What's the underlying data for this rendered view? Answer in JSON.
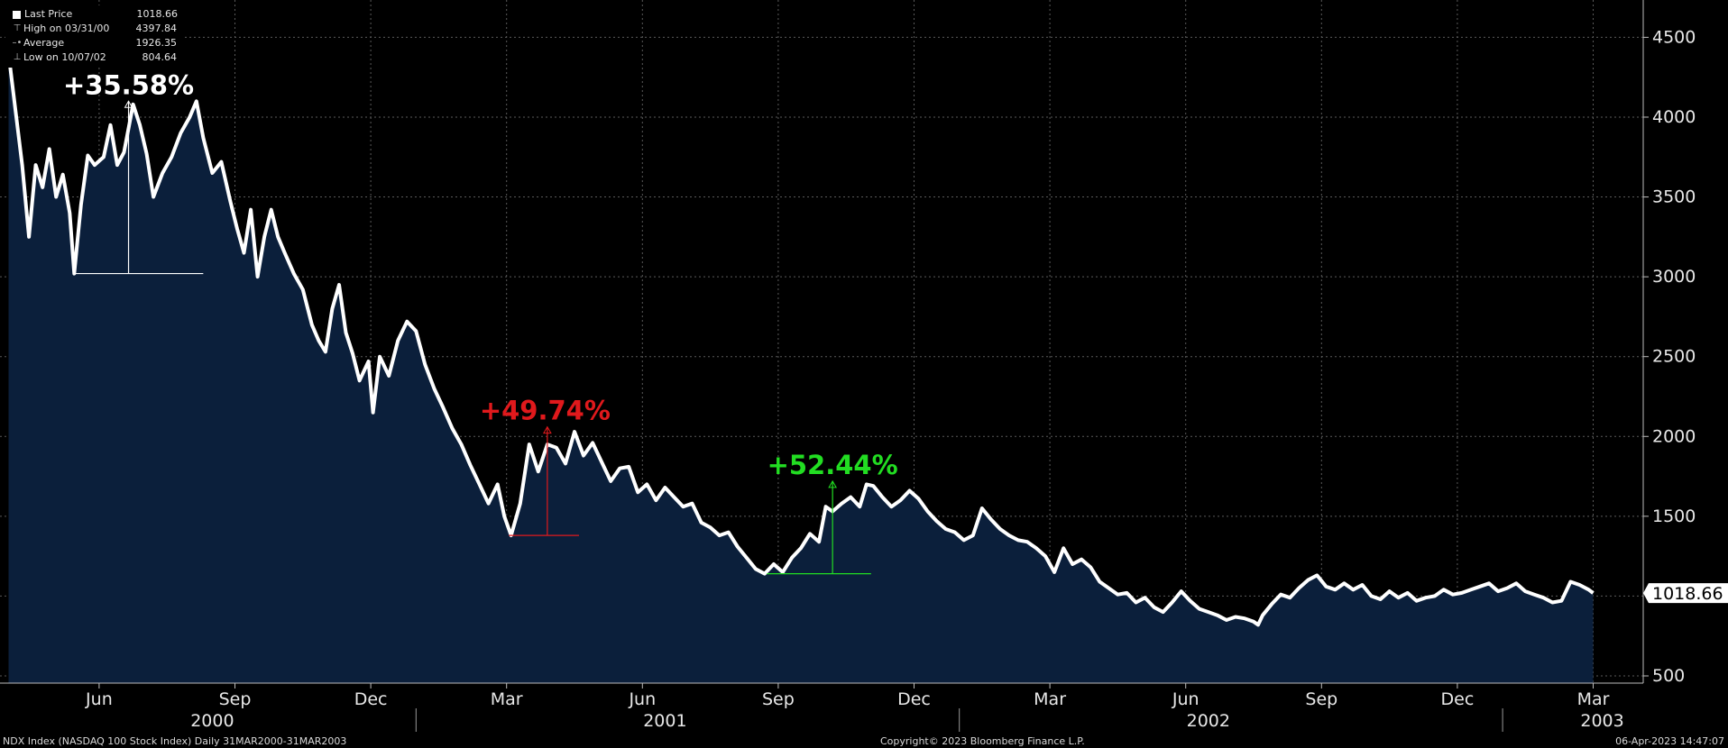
{
  "legend": [
    {
      "icon": "square-solid",
      "label": "Last Price",
      "value": "1018.66"
    },
    {
      "icon": "high-marker",
      "label": "High on 03/31/00",
      "value": "4397.84"
    },
    {
      "icon": "average-marker",
      "label": "Average",
      "value": "1926.35"
    },
    {
      "icon": "low-marker",
      "label": "Low on 10/07/02",
      "value": "804.64"
    }
  ],
  "chart_data": {
    "type": "area",
    "title": "NDX Index (NASDAQ 100 Stock Index)",
    "frequency": "Daily",
    "date_range": "31MAR2000-31MAR2003",
    "ylim": [
      400,
      4700
    ],
    "y_ticks": [
      500,
      1000,
      1500,
      2000,
      2500,
      3000,
      3500,
      4000,
      4500
    ],
    "y_tick_labels": [
      "500",
      "1500",
      "2000",
      "2500",
      "3000",
      "3500",
      "4000",
      "4500"
    ],
    "month_ticks": [
      {
        "label": "Jun",
        "month": 2.0
      },
      {
        "label": "Sep",
        "month": 5.0
      },
      {
        "label": "Dec",
        "month": 8.0
      },
      {
        "label": "Mar",
        "month": 11.0
      },
      {
        "label": "Jun",
        "month": 14.0
      },
      {
        "label": "Sep",
        "month": 17.0
      },
      {
        "label": "Dec",
        "month": 20.0
      },
      {
        "label": "Mar",
        "month": 23.0
      },
      {
        "label": "Jun",
        "month": 26.0
      },
      {
        "label": "Sep",
        "month": 29.0
      },
      {
        "label": "Dec",
        "month": 32.0
      },
      {
        "label": "Mar",
        "month": 35.0
      }
    ],
    "year_labels": [
      {
        "label": "2000",
        "month": 4.5
      },
      {
        "label": "2001",
        "month": 14.5
      },
      {
        "label": "2002",
        "month": 26.5
      },
      {
        "label": "2003",
        "month": 35.2
      }
    ],
    "year_separators": [
      9.0,
      21.0,
      33.0
    ],
    "series": [
      {
        "name": "Last Price",
        "points": [
          [
            0.0,
            4397
          ],
          [
            0.15,
            4050
          ],
          [
            0.3,
            3700
          ],
          [
            0.45,
            3250
          ],
          [
            0.6,
            3700
          ],
          [
            0.75,
            3560
          ],
          [
            0.9,
            3800
          ],
          [
            1.05,
            3500
          ],
          [
            1.2,
            3640
          ],
          [
            1.35,
            3400
          ],
          [
            1.45,
            3020
          ],
          [
            1.6,
            3450
          ],
          [
            1.75,
            3760
          ],
          [
            1.9,
            3700
          ],
          [
            2.1,
            3750
          ],
          [
            2.25,
            3950
          ],
          [
            2.4,
            3700
          ],
          [
            2.55,
            3780
          ],
          [
            2.75,
            4080
          ],
          [
            2.9,
            3950
          ],
          [
            3.05,
            3770
          ],
          [
            3.2,
            3500
          ],
          [
            3.4,
            3650
          ],
          [
            3.6,
            3750
          ],
          [
            3.8,
            3900
          ],
          [
            4.0,
            4000
          ],
          [
            4.15,
            4100
          ],
          [
            4.3,
            3870
          ],
          [
            4.5,
            3650
          ],
          [
            4.7,
            3720
          ],
          [
            4.9,
            3470
          ],
          [
            5.05,
            3300
          ],
          [
            5.2,
            3150
          ],
          [
            5.35,
            3420
          ],
          [
            5.5,
            3000
          ],
          [
            5.65,
            3250
          ],
          [
            5.8,
            3420
          ],
          [
            5.95,
            3250
          ],
          [
            6.1,
            3150
          ],
          [
            6.3,
            3020
          ],
          [
            6.5,
            2920
          ],
          [
            6.7,
            2700
          ],
          [
            6.85,
            2600
          ],
          [
            7.0,
            2530
          ],
          [
            7.15,
            2800
          ],
          [
            7.3,
            2950
          ],
          [
            7.45,
            2650
          ],
          [
            7.6,
            2520
          ],
          [
            7.75,
            2350
          ],
          [
            7.95,
            2470
          ],
          [
            8.05,
            2150
          ],
          [
            8.2,
            2500
          ],
          [
            8.4,
            2380
          ],
          [
            8.6,
            2600
          ],
          [
            8.8,
            2720
          ],
          [
            9.0,
            2660
          ],
          [
            9.2,
            2450
          ],
          [
            9.4,
            2300
          ],
          [
            9.6,
            2180
          ],
          [
            9.8,
            2050
          ],
          [
            10.0,
            1950
          ],
          [
            10.2,
            1820
          ],
          [
            10.4,
            1700
          ],
          [
            10.6,
            1580
          ],
          [
            10.8,
            1700
          ],
          [
            10.95,
            1500
          ],
          [
            11.1,
            1380
          ],
          [
            11.3,
            1580
          ],
          [
            11.5,
            1950
          ],
          [
            11.7,
            1780
          ],
          [
            11.9,
            1950
          ],
          [
            12.1,
            1930
          ],
          [
            12.3,
            1830
          ],
          [
            12.5,
            2030
          ],
          [
            12.7,
            1880
          ],
          [
            12.9,
            1960
          ],
          [
            13.1,
            1840
          ],
          [
            13.3,
            1720
          ],
          [
            13.5,
            1800
          ],
          [
            13.7,
            1810
          ],
          [
            13.9,
            1650
          ],
          [
            14.1,
            1700
          ],
          [
            14.3,
            1600
          ],
          [
            14.5,
            1680
          ],
          [
            14.7,
            1620
          ],
          [
            14.9,
            1560
          ],
          [
            15.1,
            1580
          ],
          [
            15.3,
            1460
          ],
          [
            15.5,
            1430
          ],
          [
            15.7,
            1380
          ],
          [
            15.9,
            1400
          ],
          [
            16.1,
            1310
          ],
          [
            16.3,
            1240
          ],
          [
            16.5,
            1170
          ],
          [
            16.7,
            1140
          ],
          [
            16.9,
            1200
          ],
          [
            17.1,
            1150
          ],
          [
            17.3,
            1240
          ],
          [
            17.5,
            1300
          ],
          [
            17.7,
            1390
          ],
          [
            17.9,
            1340
          ],
          [
            18.05,
            1560
          ],
          [
            18.2,
            1530
          ],
          [
            18.4,
            1580
          ],
          [
            18.6,
            1620
          ],
          [
            18.8,
            1560
          ],
          [
            18.95,
            1700
          ],
          [
            19.1,
            1690
          ],
          [
            19.3,
            1620
          ],
          [
            19.5,
            1560
          ],
          [
            19.7,
            1600
          ],
          [
            19.9,
            1660
          ],
          [
            20.1,
            1610
          ],
          [
            20.3,
            1530
          ],
          [
            20.5,
            1470
          ],
          [
            20.7,
            1420
          ],
          [
            20.9,
            1400
          ],
          [
            21.1,
            1350
          ],
          [
            21.3,
            1380
          ],
          [
            21.5,
            1550
          ],
          [
            21.7,
            1480
          ],
          [
            21.9,
            1420
          ],
          [
            22.1,
            1380
          ],
          [
            22.3,
            1350
          ],
          [
            22.5,
            1340
          ],
          [
            22.7,
            1300
          ],
          [
            22.9,
            1250
          ],
          [
            23.1,
            1150
          ],
          [
            23.3,
            1300
          ],
          [
            23.5,
            1200
          ],
          [
            23.7,
            1230
          ],
          [
            23.9,
            1180
          ],
          [
            24.1,
            1090
          ],
          [
            24.3,
            1050
          ],
          [
            24.5,
            1010
          ],
          [
            24.7,
            1020
          ],
          [
            24.9,
            960
          ],
          [
            25.1,
            990
          ],
          [
            25.3,
            930
          ],
          [
            25.5,
            900
          ],
          [
            25.7,
            960
          ],
          [
            25.9,
            1030
          ],
          [
            26.1,
            970
          ],
          [
            26.3,
            920
          ],
          [
            26.5,
            900
          ],
          [
            26.7,
            880
          ],
          [
            26.9,
            850
          ],
          [
            27.1,
            870
          ],
          [
            27.3,
            860
          ],
          [
            27.5,
            840
          ],
          [
            27.6,
            820
          ],
          [
            27.7,
            880
          ],
          [
            27.9,
            950
          ],
          [
            28.1,
            1010
          ],
          [
            28.3,
            990
          ],
          [
            28.5,
            1050
          ],
          [
            28.7,
            1100
          ],
          [
            28.9,
            1130
          ],
          [
            29.1,
            1060
          ],
          [
            29.3,
            1040
          ],
          [
            29.5,
            1080
          ],
          [
            29.7,
            1040
          ],
          [
            29.9,
            1070
          ],
          [
            30.1,
            1000
          ],
          [
            30.3,
            980
          ],
          [
            30.5,
            1030
          ],
          [
            30.7,
            990
          ],
          [
            30.9,
            1020
          ],
          [
            31.1,
            970
          ],
          [
            31.3,
            990
          ],
          [
            31.5,
            1000
          ],
          [
            31.7,
            1040
          ],
          [
            31.9,
            1010
          ],
          [
            32.1,
            1020
          ],
          [
            32.3,
            1040
          ],
          [
            32.5,
            1060
          ],
          [
            32.7,
            1080
          ],
          [
            32.9,
            1030
          ],
          [
            33.1,
            1050
          ],
          [
            33.3,
            1080
          ],
          [
            33.5,
            1030
          ],
          [
            33.7,
            1010
          ],
          [
            33.9,
            990
          ],
          [
            34.1,
            960
          ],
          [
            34.3,
            970
          ],
          [
            34.5,
            1090
          ],
          [
            34.7,
            1070
          ],
          [
            34.9,
            1040
          ],
          [
            35.0,
            1018.66
          ]
        ]
      }
    ],
    "last_value": 1018.66,
    "last_value_label": "1018.66",
    "annotations": [
      {
        "label": "+35.58%",
        "color": "#ffffff",
        "month_start": 1.45,
        "month_end": 4.3,
        "base": 3020,
        "top": 4100,
        "month_arrow": 2.65,
        "month_label": 2.65
      },
      {
        "label": "+49.74%",
        "color": "#e0191c",
        "month_start": 11.05,
        "month_end": 12.6,
        "base": 1380,
        "top": 2060,
        "month_arrow": 11.9,
        "month_label": 11.85
      },
      {
        "label": "+52.44%",
        "color": "#22dd22",
        "month_start": 16.75,
        "month_end": 19.05,
        "base": 1140,
        "top": 1720,
        "month_arrow": 18.2,
        "month_label": 18.2
      }
    ],
    "grid": true,
    "legend_position": "top-left"
  },
  "footer": {
    "left": "NDX Index (NASDAQ 100 Stock Index)  Daily 31MAR2000-31MAR2003",
    "center": "Copyright© 2023 Bloomberg Finance L.P.",
    "right": "06-Apr-2023 14:47:07"
  }
}
